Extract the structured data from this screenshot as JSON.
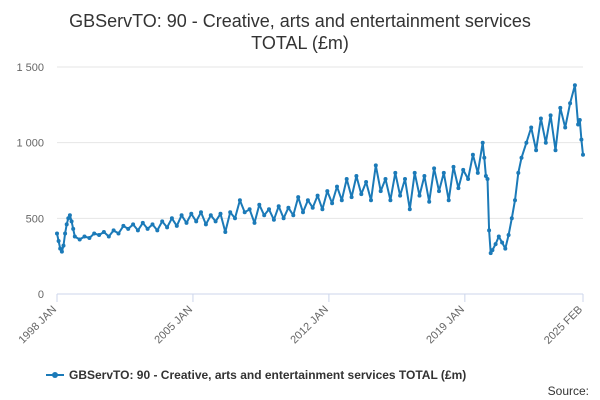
{
  "title_lines": [
    "GBServTO: 90 - Creative, arts and entertainment services",
    "TOTAL (£m)"
  ],
  "legend": {
    "label": "GBServTO: 90 - Creative, arts and entertainment services TOTAL (£m)"
  },
  "source": "Source:",
  "colors": {
    "series": "#1b7ab8",
    "grid": "#e6e6e6",
    "axis": "#ccd6eb"
  },
  "chart_data": {
    "type": "line",
    "title": "GBServTO: 90 - Creative, arts and entertainment services TOTAL (£m)",
    "xlabel": "",
    "ylabel": "",
    "x_range": [
      "1998-01",
      "2025-02"
    ],
    "ylim": [
      0,
      1500
    ],
    "y_ticks": [
      0,
      500,
      1000,
      1500
    ],
    "y_tick_labels": [
      "0",
      "500",
      "1 000",
      "1 500"
    ],
    "x_ticks": [
      "1998-01",
      "2005-01",
      "2012-01",
      "2019-01",
      "2025-02"
    ],
    "x_tick_labels": [
      "1998 JAN",
      "2005 JAN",
      "2012 JAN",
      "2019 JAN",
      "2025 FEB"
    ],
    "grid": "horizontal",
    "legend_position": "bottom",
    "series": [
      {
        "name": "GBServTO: 90 - Creative, arts and entertainment services TOTAL (£m)",
        "points": [
          [
            "1998-01",
            400
          ],
          [
            "1998-02",
            350
          ],
          [
            "1998-03",
            300
          ],
          [
            "1998-04",
            280
          ],
          [
            "1998-05",
            320
          ],
          [
            "1998-06",
            400
          ],
          [
            "1998-07",
            460
          ],
          [
            "1998-08",
            500
          ],
          [
            "1998-09",
            520
          ],
          [
            "1998-10",
            480
          ],
          [
            "1998-11",
            430
          ],
          [
            "1998-12",
            380
          ],
          [
            "1999-03",
            360
          ],
          [
            "1999-06",
            380
          ],
          [
            "1999-09",
            370
          ],
          [
            "1999-12",
            400
          ],
          [
            "2000-03",
            390
          ],
          [
            "2000-06",
            410
          ],
          [
            "2000-09",
            380
          ],
          [
            "2000-12",
            420
          ],
          [
            "2001-03",
            400
          ],
          [
            "2001-06",
            450
          ],
          [
            "2001-09",
            430
          ],
          [
            "2001-12",
            460
          ],
          [
            "2002-03",
            420
          ],
          [
            "2002-06",
            470
          ],
          [
            "2002-09",
            430
          ],
          [
            "2002-12",
            460
          ],
          [
            "2003-03",
            420
          ],
          [
            "2003-06",
            480
          ],
          [
            "2003-09",
            440
          ],
          [
            "2003-12",
            500
          ],
          [
            "2004-03",
            450
          ],
          [
            "2004-06",
            520
          ],
          [
            "2004-09",
            470
          ],
          [
            "2004-12",
            530
          ],
          [
            "2005-03",
            480
          ],
          [
            "2005-06",
            540
          ],
          [
            "2005-09",
            460
          ],
          [
            "2005-12",
            520
          ],
          [
            "2006-03",
            480
          ],
          [
            "2006-06",
            530
          ],
          [
            "2006-09",
            410
          ],
          [
            "2006-12",
            540
          ],
          [
            "2007-03",
            500
          ],
          [
            "2007-06",
            620
          ],
          [
            "2007-09",
            540
          ],
          [
            "2007-12",
            560
          ],
          [
            "2008-03",
            470
          ],
          [
            "2008-06",
            590
          ],
          [
            "2008-09",
            520
          ],
          [
            "2008-12",
            560
          ],
          [
            "2009-03",
            490
          ],
          [
            "2009-06",
            580
          ],
          [
            "2009-09",
            500
          ],
          [
            "2009-12",
            570
          ],
          [
            "2010-03",
            520
          ],
          [
            "2010-06",
            640
          ],
          [
            "2010-09",
            540
          ],
          [
            "2010-12",
            620
          ],
          [
            "2011-03",
            570
          ],
          [
            "2011-06",
            650
          ],
          [
            "2011-09",
            560
          ],
          [
            "2011-12",
            680
          ],
          [
            "2012-03",
            600
          ],
          [
            "2012-06",
            710
          ],
          [
            "2012-09",
            620
          ],
          [
            "2012-12",
            760
          ],
          [
            "2013-03",
            640
          ],
          [
            "2013-06",
            780
          ],
          [
            "2013-09",
            660
          ],
          [
            "2013-12",
            740
          ],
          [
            "2014-03",
            620
          ],
          [
            "2014-06",
            850
          ],
          [
            "2014-09",
            680
          ],
          [
            "2014-12",
            760
          ],
          [
            "2015-03",
            620
          ],
          [
            "2015-06",
            800
          ],
          [
            "2015-09",
            650
          ],
          [
            "2015-12",
            760
          ],
          [
            "2016-03",
            560
          ],
          [
            "2016-06",
            800
          ],
          [
            "2016-09",
            650
          ],
          [
            "2016-12",
            780
          ],
          [
            "2017-03",
            610
          ],
          [
            "2017-06",
            830
          ],
          [
            "2017-09",
            680
          ],
          [
            "2017-12",
            800
          ],
          [
            "2018-03",
            620
          ],
          [
            "2018-06",
            840
          ],
          [
            "2018-09",
            700
          ],
          [
            "2018-12",
            820
          ],
          [
            "2019-03",
            760
          ],
          [
            "2019-06",
            920
          ],
          [
            "2019-09",
            800
          ],
          [
            "2019-12",
            1000
          ],
          [
            "2020-01",
            900
          ],
          [
            "2020-02",
            780
          ],
          [
            "2020-03",
            760
          ],
          [
            "2020-04",
            420
          ],
          [
            "2020-05",
            270
          ],
          [
            "2020-06",
            290
          ],
          [
            "2020-08",
            330
          ],
          [
            "2020-10",
            380
          ],
          [
            "2020-12",
            340
          ],
          [
            "2021-02",
            300
          ],
          [
            "2021-04",
            390
          ],
          [
            "2021-06",
            500
          ],
          [
            "2021-08",
            620
          ],
          [
            "2021-10",
            800
          ],
          [
            "2021-12",
            900
          ],
          [
            "2022-03",
            1000
          ],
          [
            "2022-06",
            1100
          ],
          [
            "2022-09",
            950
          ],
          [
            "2022-12",
            1160
          ],
          [
            "2023-03",
            1000
          ],
          [
            "2023-06",
            1180
          ],
          [
            "2023-09",
            950
          ],
          [
            "2023-12",
            1230
          ],
          [
            "2024-03",
            1100
          ],
          [
            "2024-06",
            1260
          ],
          [
            "2024-09",
            1380
          ],
          [
            "2024-11",
            1120
          ],
          [
            "2024-12",
            1150
          ],
          [
            "2025-01",
            1020
          ],
          [
            "2025-02",
            920
          ]
        ]
      }
    ]
  }
}
